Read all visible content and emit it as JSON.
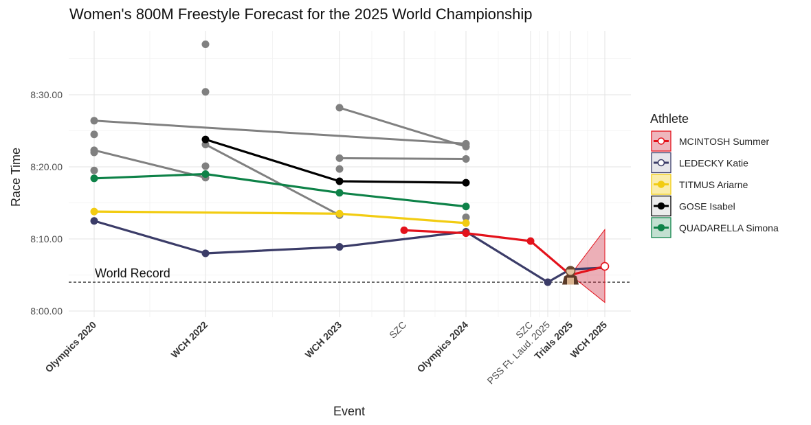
{
  "chart_data": {
    "type": "line",
    "title": "Women's 800M Freestyle Forecast for the 2025 World Championship",
    "xlabel": "Event",
    "ylabel": "Race Time",
    "y_unit": "seconds",
    "ylim": [
      477,
      519
    ],
    "y_ticks": [
      {
        "value": 480,
        "label": "8:00.00"
      },
      {
        "value": 490,
        "label": "8:10.00"
      },
      {
        "value": 500,
        "label": "8:20.00"
      },
      {
        "value": 510,
        "label": "8:30.00"
      }
    ],
    "x_events": [
      {
        "key": "oly2020",
        "label": "Olympics 2020",
        "emphasis": true
      },
      {
        "key": "wch2022",
        "label": "WCH 2022",
        "emphasis": true
      },
      {
        "key": "wch2023",
        "label": "WCH 2023",
        "emphasis": true
      },
      {
        "key": "szc1",
        "label": "SZC",
        "emphasis": false
      },
      {
        "key": "oly2024",
        "label": "Olympics 2024",
        "emphasis": true
      },
      {
        "key": "szc2",
        "label": "SZC",
        "emphasis": false
      },
      {
        "key": "pss2025",
        "label": "PSS Ft. Laud. 2025",
        "emphasis": false
      },
      {
        "key": "trials2025",
        "label": "Trials 2025",
        "emphasis": true
      },
      {
        "key": "wch2025",
        "label": "WCH 2025",
        "emphasis": true
      }
    ],
    "grid": true,
    "legend_position": "right",
    "reference_line": {
      "label": "World Record",
      "value": 484.0,
      "style": "dashed"
    },
    "series": [
      {
        "name": "MCINTOSH Summer",
        "color": "#e3121b",
        "points": [
          [
            "szc1",
            491.2
          ],
          [
            "oly2024",
            490.8
          ],
          [
            "szc2",
            489.7
          ],
          [
            "trials2025",
            485.0
          ],
          [
            "wch2025",
            486.2
          ]
        ],
        "forecast": {
          "from": "trials2025",
          "to": "wch2025",
          "upper": 491.3,
          "lower": 481.2
        }
      },
      {
        "name": "LEDECKY Katie",
        "color": "#3b3c68",
        "points": [
          [
            "oly2020",
            492.5
          ],
          [
            "wch2022",
            488.0
          ],
          [
            "wch2023",
            488.9
          ],
          [
            "oly2024",
            491.0
          ],
          [
            "pss2025",
            484.0
          ],
          [
            "trials2025",
            485.8
          ],
          [
            "wch2025",
            486.0
          ]
        ]
      },
      {
        "name": "TITMUS Ariarne",
        "color": "#f2cc12",
        "points": [
          [
            "oly2020",
            493.8
          ],
          [
            "wch2023",
            493.5
          ],
          [
            "oly2024",
            492.2
          ]
        ]
      },
      {
        "name": "GOSE Isabel",
        "color": "#000000",
        "points": [
          [
            "wch2022",
            503.8
          ],
          [
            "wch2023",
            498.0
          ],
          [
            "oly2024",
            497.8
          ]
        ]
      },
      {
        "name": "QUADARELLA Simona",
        "color": "#0e8248",
        "points": [
          [
            "oly2020",
            498.4
          ],
          [
            "wch2022",
            499.0
          ],
          [
            "wch2023",
            496.4
          ],
          [
            "oly2024",
            494.5
          ]
        ]
      }
    ],
    "other_athletes": {
      "color": "#808080",
      "lines": [
        [
          [
            "oly2020",
            506.4
          ],
          [
            "oly2024",
            503.2
          ]
        ],
        [
          [
            "oly2020",
            502.3
          ],
          [
            "wch2022",
            498.5
          ]
        ],
        [
          [
            "wch2022",
            503.1
          ],
          [
            "wch2023",
            493.3
          ]
        ],
        [
          [
            "wch2023",
            508.2
          ],
          [
            "oly2024",
            502.8
          ]
        ],
        [
          [
            "wch2023",
            501.2
          ],
          [
            "oly2024",
            501.1
          ]
        ]
      ],
      "points": [
        [
          "oly2020",
          506.4
        ],
        [
          "oly2020",
          504.5
        ],
        [
          "oly2020",
          502.3
        ],
        [
          "oly2020",
          502.0
        ],
        [
          "oly2020",
          499.5
        ],
        [
          "wch2022",
          517.0
        ],
        [
          "wch2022",
          510.4
        ],
        [
          "wch2022",
          503.1
        ],
        [
          "wch2022",
          500.1
        ],
        [
          "wch2022",
          498.5
        ],
        [
          "wch2023",
          508.2
        ],
        [
          "wch2023",
          501.2
        ],
        [
          "wch2023",
          499.7
        ],
        [
          "wch2023",
          493.3
        ],
        [
          "oly2024",
          503.2
        ],
        [
          "oly2024",
          502.8
        ],
        [
          "oly2024",
          501.1
        ],
        [
          "oly2024",
          493.0
        ]
      ]
    },
    "marker_icon": {
      "name": "swimmer-photo-icon",
      "at": "trials2025",
      "value": 485.0
    }
  }
}
